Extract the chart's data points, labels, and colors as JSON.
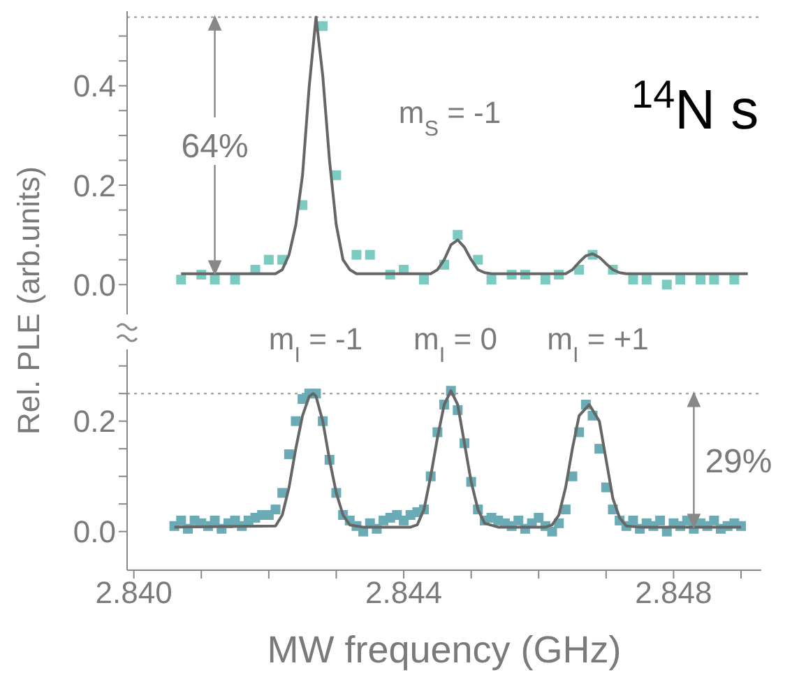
{
  "chart_data": [
    {
      "type": "scatter",
      "ylabel": "Rel. PLE (arb.units)",
      "annotations": [
        {
          "text": "64%",
          "x": 2.8412,
          "y": 0.538
        },
        "m$_{S}$ = -1",
        "$^{14}$N s"
      ],
      "xlim": [
        2.8399,
        2.8493
      ],
      "ylim": [
        -0.06,
        0.55
      ],
      "yticks": [
        {
          "value": 0,
          "label": "0.0"
        },
        {
          "value": 0.05,
          "label": null
        },
        {
          "value": 0.1,
          "label": null
        },
        {
          "value": 0.15,
          "label": null
        },
        {
          "value": 0.2,
          "label": "0.2"
        },
        {
          "value": 0.25,
          "label": null
        },
        {
          "value": 0.3,
          "label": null
        },
        {
          "value": 0.35,
          "label": null
        },
        {
          "value": 0.4,
          "label": "0.4"
        },
        {
          "value": 0.45,
          "label": null
        },
        {
          "value": 0.5,
          "label": null
        }
      ],
      "tick_labels": "y",
      "ref_lines": [
        {
          "axis": "y",
          "value": 0.538,
          "color": "#999999",
          "line_style": "dotted"
        }
      ],
      "series": [
        {
          "type": "scatter",
          "color": "#7ccbc1",
          "marker": "square",
          "x": [
            2.8407,
            2.841,
            2.8412,
            2.8415,
            2.8418,
            2.842,
            2.8422,
            2.8425,
            2.8428,
            2.843,
            2.8433,
            2.8435,
            2.8438,
            2.844,
            2.8443,
            2.8446,
            2.8448,
            2.8451,
            2.8453,
            2.8456,
            2.8458,
            2.8461,
            2.8463,
            2.8466,
            2.8468,
            2.8471,
            2.8474,
            2.8476,
            2.8479,
            2.8481,
            2.8484,
            2.8486,
            2.8489
          ],
          "values": [
            0.01,
            0.02,
            0.01,
            0.01,
            0.03,
            0.05,
            0.05,
            0.16,
            0.52,
            0.22,
            0.06,
            0.06,
            0.02,
            0.03,
            0.01,
            0.04,
            0.1,
            0.05,
            0.01,
            0.02,
            0.02,
            0.01,
            0.02,
            0.03,
            0.06,
            0.03,
            0.01,
            0.01,
            0.0,
            0.01,
            0.01,
            0.01,
            0.01
          ]
        },
        {
          "type": "line",
          "color": "#666666",
          "marker": "none",
          "x": [
            2.8407,
            2.8421,
            2.8422,
            2.8423,
            2.8424,
            2.8425,
            2.8426,
            2.8427,
            2.8428,
            2.8429,
            2.843,
            2.8431,
            2.8432,
            2.8433,
            2.8444,
            2.8445,
            2.8446,
            2.8447,
            2.8448,
            2.8449,
            2.845,
            2.8451,
            2.8452,
            2.8453,
            2.8464,
            2.8465,
            2.8466,
            2.8467,
            2.8468,
            2.8469,
            2.847,
            2.8471,
            2.8472,
            2.8473,
            2.8491
          ],
          "values": [
            0.022,
            0.022,
            0.03,
            0.06,
            0.12,
            0.22,
            0.4,
            0.538,
            0.42,
            0.25,
            0.12,
            0.05,
            0.03,
            0.022,
            0.022,
            0.03,
            0.05,
            0.08,
            0.09,
            0.075,
            0.05,
            0.03,
            0.024,
            0.022,
            0.022,
            0.03,
            0.045,
            0.058,
            0.062,
            0.055,
            0.042,
            0.03,
            0.024,
            0.022,
            0.022
          ]
        }
      ]
    },
    {
      "type": "scatter",
      "xlabel": "MW frequency (GHz)",
      "annotations": [
        "m$_{I}$ = -1",
        "m$_{I}$ = 0",
        "m$_{I}$ = +1",
        {
          "text": "29%",
          "x": 2.8483,
          "y": 0.25
        }
      ],
      "xlim": [
        2.8399,
        2.8493
      ],
      "xticks": [
        {
          "value": 2.84,
          "label": "2.840"
        },
        {
          "value": 2.841,
          "label": null
        },
        {
          "value": 2.842,
          "label": null
        },
        {
          "value": 2.843,
          "label": null
        },
        {
          "value": 2.844,
          "label": "2.844"
        },
        {
          "value": 2.845,
          "label": null
        },
        {
          "value": 2.846,
          "label": null
        },
        {
          "value": 2.847,
          "label": null
        },
        {
          "value": 2.848,
          "label": "2.848"
        },
        {
          "value": 2.849,
          "label": null
        }
      ],
      "ylim": [
        -0.07,
        0.33
      ],
      "yticks": [
        {
          "value": 0,
          "label": "0.0"
        },
        {
          "value": 0.05,
          "label": null
        },
        {
          "value": 0.1,
          "label": null
        },
        {
          "value": 0.15,
          "label": null
        },
        {
          "value": 0.2,
          "label": "0.2"
        },
        {
          "value": 0.25,
          "label": null
        },
        {
          "value": 0.3,
          "label": null
        }
      ],
      "ref_lines": [
        {
          "axis": "y",
          "value": 0.25,
          "color": "#999999",
          "line_style": "dotted"
        }
      ],
      "series": [
        {
          "type": "scatter",
          "color": "#6aabb5",
          "marker": "square",
          "x": [
            2.8406,
            2.8407,
            2.8408,
            2.8409,
            2.841,
            2.8411,
            2.8412,
            2.8413,
            2.8414,
            2.8415,
            2.8416,
            2.8417,
            2.8418,
            2.8419,
            2.842,
            2.8421,
            2.8422,
            2.8423,
            2.8424,
            2.8425,
            2.8426,
            2.8427,
            2.8428,
            2.8429,
            2.843,
            2.8431,
            2.8432,
            2.8433,
            2.8434,
            2.8435,
            2.8436,
            2.8437,
            2.8438,
            2.8439,
            2.844,
            2.8441,
            2.8442,
            2.8443,
            2.8444,
            2.8445,
            2.8446,
            2.8447,
            2.8448,
            2.8449,
            2.845,
            2.8451,
            2.8452,
            2.8453,
            2.8454,
            2.8455,
            2.8456,
            2.8457,
            2.8458,
            2.8459,
            2.846,
            2.8461,
            2.8462,
            2.8463,
            2.8464,
            2.8465,
            2.8466,
            2.8467,
            2.8468,
            2.8469,
            2.847,
            2.8471,
            2.8472,
            2.8473,
            2.8474,
            2.8475,
            2.8476,
            2.8477,
            2.8478,
            2.8479,
            2.848,
            2.8481,
            2.8482,
            2.8483,
            2.8484,
            2.8485,
            2.8486,
            2.8487,
            2.8488,
            2.8489,
            2.849
          ],
          "values": [
            0.01,
            0.02,
            0.005,
            0.02,
            0.015,
            0.01,
            0.02,
            0.005,
            0.015,
            0.02,
            0.01,
            0.02,
            0.025,
            0.03,
            0.03,
            0.04,
            0.07,
            0.14,
            0.2,
            0.24,
            0.25,
            0.25,
            0.2,
            0.13,
            0.07,
            0.03,
            0.02,
            0.01,
            0.0,
            0.015,
            0.005,
            0.02,
            0.025,
            0.03,
            0.02,
            0.03,
            0.035,
            0.04,
            0.1,
            0.18,
            0.23,
            0.255,
            0.22,
            0.16,
            0.09,
            0.04,
            0.02,
            0.025,
            0.02,
            0.015,
            0.01,
            0.02,
            0.005,
            0.015,
            0.025,
            0.01,
            0.0,
            0.015,
            0.04,
            0.1,
            0.18,
            0.23,
            0.21,
            0.15,
            0.08,
            0.04,
            0.02,
            0.01,
            0.02,
            0.005,
            0.015,
            0.01,
            0.02,
            0.0,
            0.015,
            0.01,
            0.02,
            0.005,
            0.015,
            0.01,
            0.02,
            0.005,
            0.01,
            0.015,
            0.01
          ]
        },
        {
          "type": "line",
          "color": "#666666",
          "marker": "none",
          "x": [
            2.8406,
            2.8421,
            2.8422,
            2.8423,
            2.8424,
            2.8425,
            2.8426,
            2.84266,
            2.8427,
            2.8428,
            2.8429,
            2.843,
            2.8431,
            2.8432,
            2.8434,
            2.8441,
            2.8442,
            2.8443,
            2.8444,
            2.8445,
            2.8446,
            2.8447,
            2.8448,
            2.8449,
            2.845,
            2.8451,
            2.8452,
            2.8454,
            2.8461,
            2.8462,
            2.8463,
            2.8464,
            2.8465,
            2.8466,
            2.84675,
            2.8469,
            2.847,
            2.8471,
            2.8472,
            2.8473,
            2.8475,
            2.849
          ],
          "values": [
            0.008,
            0.01,
            0.03,
            0.08,
            0.15,
            0.21,
            0.245,
            0.25,
            0.245,
            0.2,
            0.13,
            0.07,
            0.03,
            0.012,
            0.008,
            0.008,
            0.012,
            0.04,
            0.1,
            0.17,
            0.23,
            0.255,
            0.23,
            0.16,
            0.09,
            0.04,
            0.015,
            0.008,
            0.008,
            0.012,
            0.03,
            0.08,
            0.15,
            0.21,
            0.23,
            0.2,
            0.13,
            0.06,
            0.025,
            0.01,
            0.008,
            0.008
          ]
        }
      ]
    }
  ]
}
